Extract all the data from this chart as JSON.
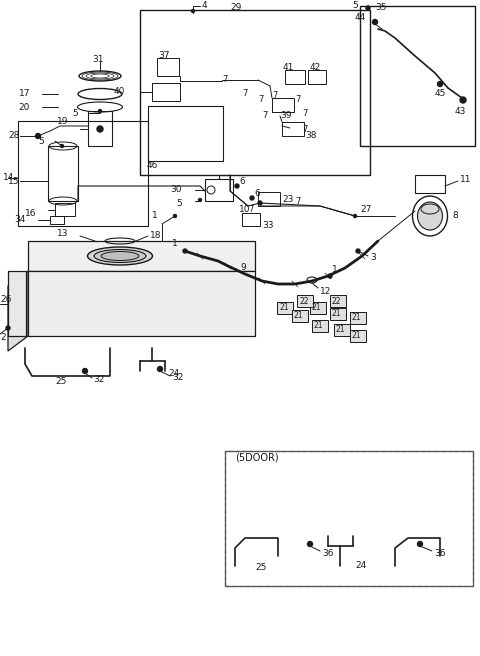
{
  "bg_color": "#ffffff",
  "lc": "#1a1a1a",
  "fig_width": 4.8,
  "fig_height": 6.56,
  "dpi": 100,
  "xlim": [
    0,
    480
  ],
  "ylim": [
    0,
    656
  ]
}
